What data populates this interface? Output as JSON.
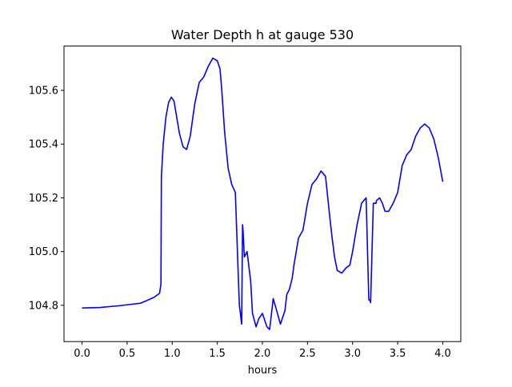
{
  "chart_data": {
    "type": "line",
    "title": "Water Depth h at gauge 530",
    "xlabel": "hours",
    "ylabel": "",
    "xlim": [
      -0.2,
      4.2
    ],
    "ylim": [
      104.665,
      105.765
    ],
    "grid": false,
    "x_ticks": [
      0.0,
      0.5,
      1.0,
      1.5,
      2.0,
      2.5,
      3.0,
      3.5,
      4.0
    ],
    "x_tick_labels": [
      "0.0",
      "0.5",
      "1.0",
      "1.5",
      "2.0",
      "2.5",
      "3.0",
      "3.5",
      "4.0"
    ],
    "y_ticks": [
      104.8,
      105.0,
      105.2,
      105.4,
      105.6
    ],
    "y_tick_labels": [
      "104.8",
      "105.0",
      "105.2",
      "105.4",
      "105.6"
    ],
    "series": [
      {
        "color": "#0000ff",
        "x": [
          0.0,
          0.2,
          0.4,
          0.55,
          0.65,
          0.7,
          0.8,
          0.86,
          0.875,
          0.88,
          0.9,
          0.93,
          0.96,
          0.99,
          1.02,
          1.05,
          1.08,
          1.12,
          1.16,
          1.2,
          1.25,
          1.3,
          1.35,
          1.4,
          1.45,
          1.5,
          1.53,
          1.55,
          1.58,
          1.62,
          1.66,
          1.7,
          1.74,
          1.745,
          1.77,
          1.78,
          1.785,
          1.8,
          1.83,
          1.87,
          1.89,
          1.93,
          1.96,
          2.0,
          2.05,
          2.08,
          2.12,
          2.15,
          2.2,
          2.25,
          2.27,
          2.3,
          2.33,
          2.35,
          2.4,
          2.45,
          2.5,
          2.55,
          2.6,
          2.65,
          2.7,
          2.75,
          2.77,
          2.8,
          2.83,
          2.88,
          2.93,
          2.97,
          3.0,
          3.05,
          3.1,
          3.15,
          3.18,
          3.19,
          3.2,
          3.23,
          3.26,
          3.265,
          3.3,
          3.33,
          3.36,
          3.4,
          3.45,
          3.5,
          3.55,
          3.6,
          3.65,
          3.7,
          3.75,
          3.8,
          3.85,
          3.9,
          3.95,
          4.0
        ],
        "y": [
          104.79,
          104.792,
          104.798,
          104.804,
          104.808,
          104.815,
          104.83,
          104.845,
          104.88,
          105.28,
          105.4,
          105.5,
          105.555,
          105.575,
          105.56,
          105.5,
          105.44,
          105.39,
          105.38,
          105.43,
          105.55,
          105.63,
          105.65,
          105.69,
          105.72,
          105.71,
          105.68,
          105.6,
          105.45,
          105.31,
          105.25,
          105.22,
          104.84,
          104.8,
          104.73,
          105.1,
          105.08,
          104.98,
          105.0,
          104.89,
          104.77,
          104.72,
          104.75,
          104.77,
          104.72,
          104.71,
          104.825,
          104.79,
          104.73,
          104.78,
          104.84,
          104.86,
          104.9,
          104.95,
          105.05,
          105.08,
          105.18,
          105.25,
          105.27,
          105.3,
          105.28,
          105.12,
          105.06,
          104.98,
          104.93,
          104.92,
          104.94,
          104.95,
          105.0,
          105.1,
          105.18,
          105.2,
          104.82,
          104.82,
          104.81,
          105.18,
          105.18,
          105.19,
          105.2,
          105.18,
          105.15,
          105.15,
          105.18,
          105.22,
          105.32,
          105.36,
          105.38,
          105.43,
          105.46,
          105.475,
          105.46,
          105.42,
          105.35,
          105.26
        ]
      }
    ]
  }
}
